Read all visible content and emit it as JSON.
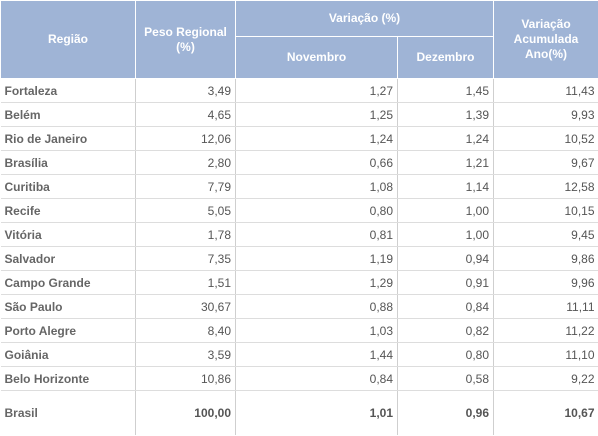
{
  "headers": {
    "regiao": "Região",
    "peso": "Peso Regional (%)",
    "variacao": "Variação (%)",
    "novembro": "Novembro",
    "dezembro": "Dezembro",
    "acumulada": "Variação Acumulada Ano(%)"
  },
  "rows": [
    {
      "name": "Fortaleza",
      "peso": "3,49",
      "nov": "1,27",
      "dez": "1,45",
      "acum": "11,43"
    },
    {
      "name": "Belém",
      "peso": "4,65",
      "nov": "1,25",
      "dez": "1,39",
      "acum": "9,93"
    },
    {
      "name": "Rio de Janeiro",
      "peso": "12,06",
      "nov": "1,24",
      "dez": "1,24",
      "acum": "10,52"
    },
    {
      "name": "Brasília",
      "peso": "2,80",
      "nov": "0,66",
      "dez": "1,21",
      "acum": "9,67"
    },
    {
      "name": "Curitiba",
      "peso": "7,79",
      "nov": "1,08",
      "dez": "1,14",
      "acum": "12,58"
    },
    {
      "name": "Recife",
      "peso": "5,05",
      "nov": "0,80",
      "dez": "1,00",
      "acum": "10,15"
    },
    {
      "name": "Vitória",
      "peso": "1,78",
      "nov": "0,81",
      "dez": "1,00",
      "acum": "9,45"
    },
    {
      "name": "Salvador",
      "peso": "7,35",
      "nov": "1,19",
      "dez": "0,94",
      "acum": "9,86"
    },
    {
      "name": "Campo Grande",
      "peso": "1,51",
      "nov": "1,29",
      "dez": "0,91",
      "acum": "9,96"
    },
    {
      "name": "São Paulo",
      "peso": "30,67",
      "nov": "0,88",
      "dez": "0,84",
      "acum": "11,11"
    },
    {
      "name": "Porto Alegre",
      "peso": "8,40",
      "nov": "1,03",
      "dez": "0,82",
      "acum": "11,22"
    },
    {
      "name": "Goiânia",
      "peso": "3,59",
      "nov": "1,44",
      "dez": "0,80",
      "acum": "11,10"
    },
    {
      "name": "Belo Horizonte",
      "peso": "10,86",
      "nov": "0,84",
      "dez": "0,58",
      "acum": "9,22"
    }
  ],
  "total": {
    "name": "Brasil",
    "peso": "100,00",
    "nov": "1,01",
    "dez": "0,96",
    "acum": "10,67"
  }
}
